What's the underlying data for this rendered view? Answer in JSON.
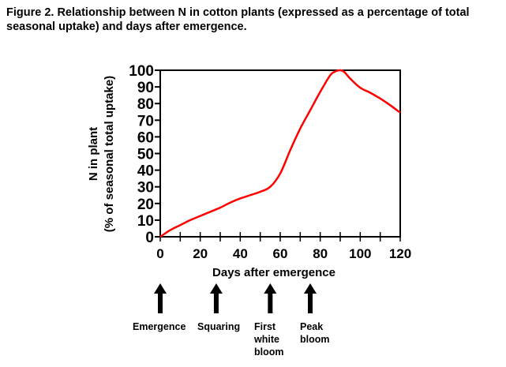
{
  "caption": "Figure 2.  Relationship between N in cotton plants (expressed as a percentage of total seasonal uptake) and days after emergence.",
  "chart_data": {
    "type": "line",
    "x": [
      0,
      5,
      10,
      15,
      20,
      25,
      30,
      35,
      40,
      45,
      50,
      55,
      60,
      65,
      70,
      75,
      80,
      85,
      88,
      90,
      92,
      95,
      100,
      105,
      110,
      115,
      120
    ],
    "series": [
      {
        "values": [
          0,
          4,
          7,
          10,
          12.5,
          15,
          17.5,
          20.5,
          23,
          25,
          27,
          30,
          38,
          52,
          65,
          76,
          87,
          97,
          99.5,
          100,
          99,
          95,
          89.5,
          86.5,
          83,
          79,
          74.5
        ],
        "color": "#ff0000"
      }
    ],
    "xlabel": "Days after emergence",
    "ylabel": [
      "N in plant",
      "(% of seasonal total uptake)"
    ],
    "xlim": [
      0,
      120
    ],
    "ylim": [
      0,
      100
    ],
    "xticks": [
      0,
      20,
      40,
      60,
      80,
      100,
      120
    ],
    "xminor_step": 10,
    "yticks": [
      0,
      10,
      20,
      30,
      40,
      50,
      60,
      70,
      80,
      90,
      100
    ],
    "grid": false,
    "annotations": [
      {
        "day": 0,
        "label": [
          "Emergence"
        ]
      },
      {
        "day": 28,
        "label": [
          "Squaring"
        ]
      },
      {
        "day": 55,
        "label": [
          "First",
          "white",
          "bloom"
        ]
      },
      {
        "day": 75,
        "label": [
          "Peak",
          "bloom"
        ]
      }
    ]
  }
}
